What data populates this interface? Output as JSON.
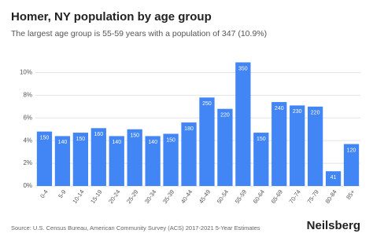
{
  "chart_data": {
    "type": "bar",
    "title": "Homer, NY population by age group",
    "subtitle": "The largest age group is 55-59 years with a population of 347 (10.9%)",
    "categories": [
      "0-4",
      "5-9",
      "10-14",
      "15-19",
      "20-24",
      "25-29",
      "30-34",
      "35-39",
      "40-44",
      "45-49",
      "50-54",
      "55-59",
      "60-64",
      "65-69",
      "70-74",
      "75-79",
      "80-84",
      "85+"
    ],
    "values": [
      4.8,
      4.4,
      4.7,
      5.1,
      4.4,
      5.0,
      4.4,
      4.6,
      5.6,
      7.8,
      6.8,
      10.9,
      4.7,
      7.4,
      7.1,
      7.0,
      1.3,
      3.7
    ],
    "population": [
      150,
      140,
      150,
      160,
      140,
      150,
      140,
      150,
      180,
      250,
      220,
      350,
      150,
      240,
      230,
      220,
      41,
      120
    ],
    "color": "#4285f4",
    "ylim": [
      0,
      11
    ],
    "yticks": [
      {
        "value": 0,
        "label": "0%"
      },
      {
        "value": 2,
        "label": "2%"
      },
      {
        "value": 4,
        "label": "4%"
      },
      {
        "value": 6,
        "label": "6%"
      },
      {
        "value": 8,
        "label": "8%"
      },
      {
        "value": 10,
        "label": "10%"
      }
    ],
    "grid": true,
    "source": "Source: U.S. Census Bureau, American Community Survey (ACS) 2017-2021 5-Year Estimates",
    "brand": "Neilsberg"
  }
}
